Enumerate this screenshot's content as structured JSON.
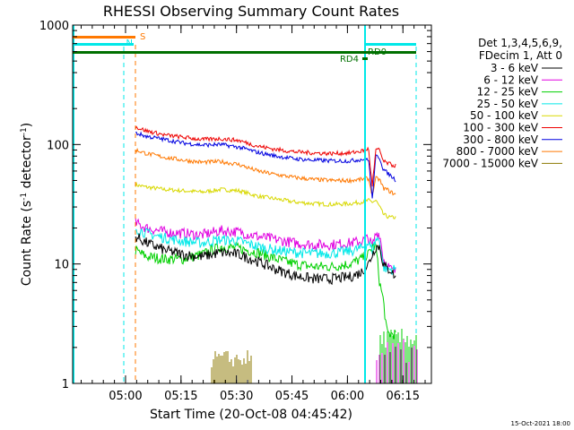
{
  "chart_data": {
    "type": "line",
    "title": "RHESSI Observing Summary Count Rates",
    "xlabel": "Start Time (20-Oct-08 04:45:42)",
    "ylabel_parts": [
      "Count Rate (s",
      "-1",
      " detector",
      "-1",
      ")"
    ],
    "y_scale": "log",
    "ylim": [
      1,
      1000
    ],
    "y_ticks": [
      {
        "v": 1,
        "label": "1"
      },
      {
        "v": 10,
        "label": "10"
      },
      {
        "v": 100,
        "label": "100"
      },
      {
        "v": 1000,
        "label": "1000"
      }
    ],
    "xlim_minutes": [
      0,
      97
    ],
    "x_ticks": [
      {
        "m": 14.3,
        "label": "05:00"
      },
      {
        "m": 29.3,
        "label": "05:15"
      },
      {
        "m": 44.3,
        "label": "05:30"
      },
      {
        "m": 59.3,
        "label": "05:45"
      },
      {
        "m": 74.3,
        "label": "06:00"
      },
      {
        "m": 89.3,
        "label": "06:15"
      }
    ],
    "legend_header": [
      "Det 1,3,4,5,6,9,",
      "FDecim 1, Att 0"
    ],
    "legend_placement": "right",
    "series": [
      {
        "name": "3 - 6 keV",
        "color": "#000000",
        "values": [
          [
            17,
            17
          ],
          [
            20,
            15
          ],
          [
            25,
            13
          ],
          [
            30,
            12
          ],
          [
            35,
            11.5
          ],
          [
            40,
            12.5
          ],
          [
            45,
            12
          ],
          [
            50,
            10.5
          ],
          [
            55,
            9
          ],
          [
            60,
            8
          ],
          [
            65,
            7.5
          ],
          [
            70,
            7.5
          ],
          [
            75,
            7.8
          ],
          [
            78,
            8.5
          ],
          [
            80,
            10
          ],
          [
            81,
            12
          ],
          [
            82,
            14
          ],
          [
            83,
            14
          ],
          [
            84,
            10
          ],
          [
            85,
            9
          ],
          [
            86,
            9
          ],
          [
            87.5,
            7.5
          ]
        ]
      },
      {
        "name": "6 - 12 keV",
        "color": "#e000e0",
        "values": [
          [
            17,
            22
          ],
          [
            20,
            20
          ],
          [
            25,
            18.5
          ],
          [
            30,
            18
          ],
          [
            35,
            17.5
          ],
          [
            40,
            19
          ],
          [
            45,
            18.5
          ],
          [
            50,
            17
          ],
          [
            55,
            16
          ],
          [
            60,
            15
          ],
          [
            65,
            14.5
          ],
          [
            70,
            14.5
          ],
          [
            75,
            15
          ],
          [
            78,
            15.5
          ],
          [
            80,
            16.5
          ],
          [
            81,
            14
          ],
          [
            82,
            18
          ],
          [
            83,
            18
          ],
          [
            84,
            11
          ],
          [
            85,
            10
          ],
          [
            86,
            9
          ],
          [
            87.5,
            8.5
          ]
        ]
      },
      {
        "name": "12 - 25 keV",
        "color": "#00d000",
        "values": [
          [
            17,
            13
          ],
          [
            20,
            11.5
          ],
          [
            25,
            11
          ],
          [
            30,
            11
          ],
          [
            35,
            12
          ],
          [
            40,
            14
          ],
          [
            45,
            13.5
          ],
          [
            50,
            12.5
          ],
          [
            55,
            11
          ],
          [
            60,
            10
          ],
          [
            65,
            9.5
          ],
          [
            70,
            9.5
          ],
          [
            75,
            10
          ],
          [
            78,
            11
          ],
          [
            80,
            12
          ],
          [
            81,
            14
          ],
          [
            82,
            14
          ],
          [
            83,
            7
          ],
          [
            84,
            5
          ],
          [
            85,
            2.6
          ],
          [
            86,
            2.6
          ],
          [
            87.5,
            2.6
          ]
        ]
      },
      {
        "name": "25 - 50 keV",
        "color": "#00e8e8",
        "values": [
          [
            17,
            20
          ],
          [
            20,
            18
          ],
          [
            25,
            16.5
          ],
          [
            30,
            15.5
          ],
          [
            35,
            15
          ],
          [
            40,
            16
          ],
          [
            45,
            15.5
          ],
          [
            50,
            14
          ],
          [
            55,
            13
          ],
          [
            60,
            12.5
          ],
          [
            65,
            12.2
          ],
          [
            70,
            12.3
          ],
          [
            75,
            12.8
          ],
          [
            78,
            13.5
          ],
          [
            80,
            15
          ],
          [
            81,
            13
          ],
          [
            82,
            16
          ],
          [
            83,
            16
          ],
          [
            84,
            9.5
          ],
          [
            85,
            9
          ],
          [
            86,
            9
          ],
          [
            87.5,
            9
          ]
        ]
      },
      {
        "name": "50 - 100 keV",
        "color": "#d8d800",
        "values": [
          [
            17,
            46
          ],
          [
            20,
            44
          ],
          [
            25,
            42
          ],
          [
            30,
            41
          ],
          [
            35,
            40
          ],
          [
            40,
            42
          ],
          [
            45,
            41
          ],
          [
            50,
            37
          ],
          [
            55,
            35
          ],
          [
            60,
            33
          ],
          [
            65,
            32
          ],
          [
            70,
            31.5
          ],
          [
            75,
            32
          ],
          [
            78,
            33
          ],
          [
            80,
            34
          ],
          [
            81,
            33
          ],
          [
            82,
            34
          ],
          [
            83,
            30
          ],
          [
            84,
            26
          ],
          [
            85,
            25
          ],
          [
            86,
            24.5
          ],
          [
            87.5,
            24.5
          ]
        ]
      },
      {
        "name": "100 - 300 keV",
        "color": "#ee0000",
        "values": [
          [
            17,
            140
          ],
          [
            20,
            130
          ],
          [
            25,
            120
          ],
          [
            30,
            115
          ],
          [
            35,
            110
          ],
          [
            40,
            112
          ],
          [
            45,
            108
          ],
          [
            50,
            97
          ],
          [
            55,
            91
          ],
          [
            60,
            87
          ],
          [
            65,
            85
          ],
          [
            70,
            84
          ],
          [
            75,
            85
          ],
          [
            78,
            88
          ],
          [
            80,
            92
          ],
          [
            81,
            45
          ],
          [
            82,
            90
          ],
          [
            83,
            90
          ],
          [
            84,
            72
          ],
          [
            85,
            70
          ],
          [
            86,
            68
          ],
          [
            87.5,
            66
          ]
        ]
      },
      {
        "name": "300 - 800 keV",
        "color": "#0000e0",
        "values": [
          [
            17,
            125
          ],
          [
            20,
            117
          ],
          [
            25,
            110
          ],
          [
            30,
            103
          ],
          [
            35,
            99
          ],
          [
            40,
            100
          ],
          [
            45,
            95
          ],
          [
            50,
            86
          ],
          [
            55,
            80
          ],
          [
            60,
            76
          ],
          [
            65,
            74
          ],
          [
            70,
            73
          ],
          [
            75,
            73
          ],
          [
            78,
            75
          ],
          [
            80,
            76
          ],
          [
            81,
            35
          ],
          [
            82,
            80
          ],
          [
            83,
            78
          ],
          [
            84,
            62
          ],
          [
            85,
            58
          ],
          [
            86,
            55
          ],
          [
            87.5,
            50
          ]
        ]
      },
      {
        "name": "800 - 7000 keV",
        "color": "#ff7800",
        "values": [
          [
            17,
            90
          ],
          [
            20,
            84
          ],
          [
            25,
            78
          ],
          [
            30,
            74
          ],
          [
            35,
            71
          ],
          [
            40,
            72
          ],
          [
            45,
            68
          ],
          [
            50,
            60
          ],
          [
            55,
            56
          ],
          [
            60,
            53
          ],
          [
            65,
            51
          ],
          [
            70,
            50
          ],
          [
            75,
            50
          ],
          [
            78,
            51
          ],
          [
            80,
            52
          ],
          [
            81,
            38
          ],
          [
            82,
            52
          ],
          [
            83,
            51
          ],
          [
            84,
            43
          ],
          [
            85,
            42
          ],
          [
            86,
            40
          ],
          [
            87.5,
            38
          ]
        ]
      },
      {
        "name": "7000 - 15000 keV",
        "color": "#8c7800",
        "values": []
      }
    ],
    "annotations": [
      {
        "label": "S",
        "color": "#ff7800"
      },
      {
        "label": "N",
        "color": "#00e8e8"
      },
      {
        "label": "RD0",
        "color": "#007000"
      },
      {
        "label": "RD4",
        "color": "#007000"
      }
    ],
    "footer": "15-Oct-2021 18:00"
  }
}
